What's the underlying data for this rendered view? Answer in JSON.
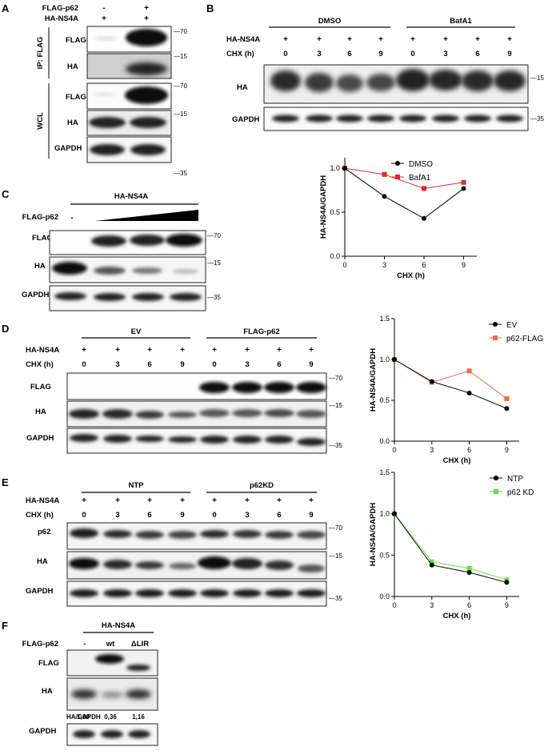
{
  "panels": {
    "A": {
      "letter": "A",
      "rows": [
        {
          "label": "FLAG-p62",
          "signs": [
            "-",
            "+"
          ]
        },
        {
          "label": "HA-NS4A",
          "signs": [
            "+",
            "+"
          ]
        }
      ],
      "group_labels": [
        "IP: FLAG",
        "WCL"
      ],
      "blots": [
        {
          "label": "FLAG",
          "marker": "70"
        },
        {
          "label": "HA",
          "marker": "15"
        },
        {
          "label": "FLAG",
          "marker": "70"
        },
        {
          "label": "HA",
          "marker": "15"
        },
        {
          "label": "GAPDH",
          "marker": "35"
        }
      ]
    },
    "B": {
      "letter": "B",
      "groups": [
        "DMSO",
        "BafA1"
      ],
      "row_labels": [
        "HA-NS4A",
        "CHX (h)"
      ],
      "plus": "+",
      "chx": [
        "0",
        "3",
        "6",
        "9",
        "0",
        "3",
        "6",
        "9"
      ],
      "blots": [
        {
          "label": "HA",
          "marker": "15"
        },
        {
          "label": "GAPDH",
          "marker": "35"
        }
      ]
    },
    "C": {
      "letter": "C",
      "header": "HA-NS4A",
      "row_label": "FLAG-p62",
      "minus": "-",
      "blots": [
        {
          "label": "FLAG",
          "marker": "70"
        },
        {
          "label": "HA",
          "marker": "15"
        },
        {
          "label": "GAPDH",
          "marker": "35"
        }
      ]
    },
    "D": {
      "letter": "D",
      "groups": [
        "EV",
        "FLAG-p62"
      ],
      "row_labels": [
        "HA-NS4A",
        "CHX (h)"
      ],
      "plus": "+",
      "chx": [
        "0",
        "3",
        "6",
        "9",
        "0",
        "3",
        "6",
        "9"
      ],
      "blots": [
        {
          "label": "FLAG",
          "marker": "70"
        },
        {
          "label": "HA",
          "marker": "15"
        },
        {
          "label": "GAPDH",
          "marker": "35"
        }
      ]
    },
    "E": {
      "letter": "E",
      "groups": [
        "NTP",
        "p62KD"
      ],
      "row_labels": [
        "HA-NS4A",
        "CHX (h)"
      ],
      "plus": "+",
      "chx": [
        "0",
        "3",
        "6",
        "9",
        "0",
        "3",
        "6",
        "9"
      ],
      "blots": [
        {
          "label": "p62",
          "marker": "70"
        },
        {
          "label": "HA",
          "marker": "15"
        },
        {
          "label": "GAPDH",
          "marker": "35"
        }
      ]
    },
    "F": {
      "letter": "F",
      "header": "HA-NS4A",
      "row_label": "FLAG-p62",
      "lanes": [
        "-",
        "wt",
        "ΔLIR"
      ],
      "blots": [
        {
          "label": "FLAG"
        },
        {
          "label": "HA"
        },
        {
          "label": "GAPDH"
        }
      ],
      "ratio_label": "HA/GAPDH",
      "ratios": [
        "1,00",
        "0,36",
        "1,16"
      ]
    }
  },
  "chart_data": [
    {
      "type": "line",
      "panel": "B",
      "x": [
        0,
        3,
        6,
        9
      ],
      "series": [
        {
          "name": "DMSO",
          "color": "#000000",
          "marker": "circle",
          "values": [
            1.0,
            0.68,
            0.43,
            0.77
          ]
        },
        {
          "name": "BafA1",
          "color": "#e8262a",
          "marker": "square",
          "values": [
            1.0,
            0.93,
            0.77,
            0.84
          ]
        }
      ],
      "xlabel": "CHX (h)",
      "ylabel": "HA-NS4A/GAPDH",
      "xticks": [
        "0",
        "3",
        "6",
        "9"
      ],
      "yticks": [
        "0.0",
        "0.5",
        "1.0"
      ],
      "xlim": [
        0,
        10
      ],
      "ylim": [
        0,
        1.12
      ],
      "legend": "top-right",
      "grid": false
    },
    {
      "type": "line",
      "panel": "D",
      "x": [
        0,
        3,
        6,
        9
      ],
      "series": [
        {
          "name": "EV",
          "color": "#000000",
          "marker": "circle",
          "values": [
            1.0,
            0.73,
            0.59,
            0.4
          ]
        },
        {
          "name": "p62-FLAG",
          "color": "#f26a3d",
          "marker": "square",
          "values": [
            1.0,
            0.72,
            0.86,
            0.52
          ]
        }
      ],
      "xlabel": "CHX (h)",
      "ylabel": "HA-NS4A/GAPDH",
      "xticks": [
        "0",
        "3",
        "6",
        "9"
      ],
      "yticks": [
        "0.0",
        "0.5",
        "1.0",
        "1.5"
      ],
      "xlim": [
        0,
        10
      ],
      "ylim": [
        0,
        1.5
      ],
      "legend": "top-right",
      "grid": false
    },
    {
      "type": "line",
      "panel": "E",
      "x": [
        0,
        3,
        6,
        9
      ],
      "series": [
        {
          "name": "NTP",
          "color": "#000000",
          "marker": "circle",
          "values": [
            1.0,
            0.38,
            0.29,
            0.17
          ]
        },
        {
          "name": "p62 KD",
          "color": "#5ee43c",
          "marker": "square",
          "values": [
            1.0,
            0.42,
            0.34,
            0.2
          ]
        }
      ],
      "xlabel": "CHX (h)",
      "ylabel": "HA-NS4A/GAPDH",
      "xticks": [
        "0",
        "3",
        "6",
        "9"
      ],
      "yticks": [
        "0.0",
        "0.5",
        "1.0",
        "1.5"
      ],
      "xlim": [
        0,
        10
      ],
      "ylim": [
        0,
        1.5
      ],
      "legend": "top-right",
      "grid": false
    }
  ]
}
